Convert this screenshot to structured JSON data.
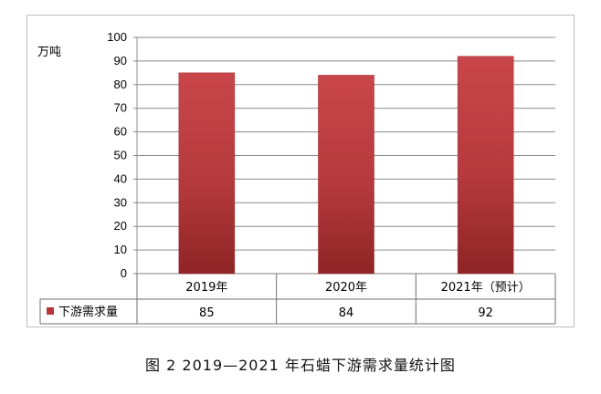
{
  "chart_data": {
    "type": "bar",
    "y_unit": "万吨",
    "ylim": [
      0,
      100
    ],
    "yticks": [
      0,
      10,
      20,
      30,
      40,
      50,
      60,
      70,
      80,
      90,
      100
    ],
    "categories": [
      "2019年",
      "2020年",
      "2021年（预计）"
    ],
    "series": [
      {
        "name": "下游需求量",
        "values": [
          85,
          84,
          92
        ],
        "color": "#b8363a"
      }
    ],
    "grid": true,
    "legend": "data-table-left",
    "data_table": true
  },
  "caption": "图 2  2019—2021 年石蜡下游需求量统计图"
}
